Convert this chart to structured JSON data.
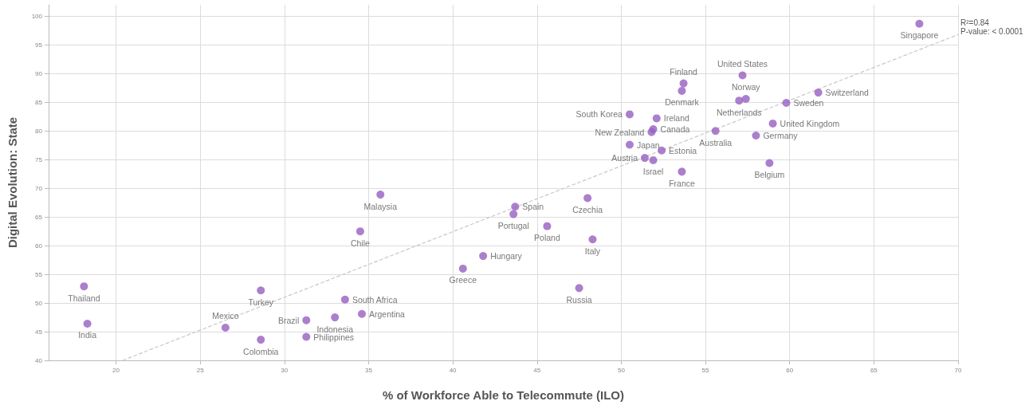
{
  "chart_data": {
    "type": "scatter",
    "xlabel": "% of Workforce Able to Telecommute (ILO)",
    "ylabel": "Digital Evolution: State",
    "xlim": [
      16,
      70
    ],
    "xticks": [
      20,
      25,
      30,
      35,
      40,
      45,
      50,
      55,
      60,
      65,
      70
    ],
    "ylim": [
      40,
      102
    ],
    "yticks": [
      40,
      45,
      50,
      55,
      60,
      65,
      70,
      75,
      80,
      85,
      90,
      95,
      100
    ],
    "grid": true,
    "marker": "circle",
    "series": [
      {
        "color": "#975fc1",
        "x": [
          67.7,
          57.2,
          53.7,
          53.6,
          57.4,
          57.0,
          61.7,
          59.8,
          50.5,
          52.1,
          51.9,
          51.8,
          55.6,
          59.0,
          58.0,
          50.5,
          52.4,
          51.4,
          51.9,
          53.6,
          58.8,
          48.0,
          43.7,
          43.6,
          45.6,
          48.3,
          47.5,
          18.1,
          18.3,
          26.5,
          28.6,
          28.6,
          31.3,
          31.3,
          33.0,
          33.6,
          34.6,
          34.5,
          40.6,
          41.8,
          35.7
        ],
        "values": [
          98.7,
          89.7,
          88.3,
          87.0,
          85.6,
          85.3,
          86.7,
          84.9,
          82.9,
          82.2,
          80.3,
          79.8,
          80.0,
          81.3,
          79.2,
          77.6,
          76.6,
          75.3,
          74.9,
          72.9,
          74.4,
          68.3,
          66.8,
          65.5,
          63.4,
          61.1,
          52.6,
          52.9,
          46.4,
          45.7,
          43.6,
          52.2,
          47.0,
          44.1,
          47.5,
          50.6,
          48.1,
          62.5,
          56.0,
          58.2,
          68.9
        ],
        "value_labels": [
          "Singapore",
          "United States",
          "Finland",
          "Denmark",
          "Norway",
          "Netherlands",
          "Switzerland",
          "Sweden",
          "South Korea",
          "Ireland",
          "Canada",
          "New Zealand",
          "Australia",
          "United Kingdom",
          "Germany",
          "Japan",
          "Estonia",
          "Austria",
          "Israel",
          "France",
          "Belgium",
          "Czechia",
          "Spain",
          "Portugal",
          "Poland",
          "Italy",
          "Russia",
          "Thailand",
          "India",
          "Mexico",
          "Colombia",
          "Turkey",
          "Brazil",
          "Philippines",
          "Indonesia",
          "South Africa",
          "Argentina",
          "Chile",
          "Greece",
          "Hungary",
          "Malaysia"
        ]
      },
      {
        "type": "line",
        "color": "#c8c8c8",
        "line_style": "dashed",
        "marker": "none",
        "x": [
          20.4,
          70
        ],
        "values": [
          40,
          96.8
        ]
      }
    ],
    "annotations": [
      {
        "text": "R²=0.84",
        "x": 70,
        "y": 96.8
      },
      {
        "text": "P-value: < 0.0001",
        "x": 70,
        "y": 96.8
      }
    ]
  }
}
